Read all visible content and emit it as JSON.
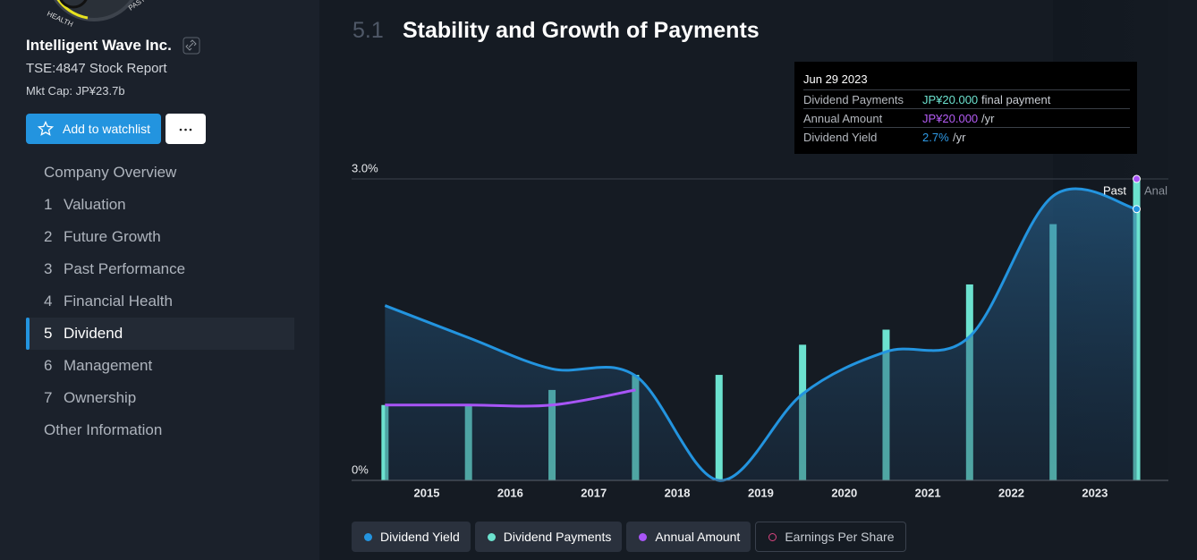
{
  "sidebar": {
    "logo": {
      "labels": [
        "HEALTH",
        "PAST"
      ]
    },
    "company": "Intelligent Wave Inc.",
    "report": "TSE:4847 Stock Report",
    "market_cap": "Mkt Cap: JP¥23.7b",
    "watchlist_button": "Add to watchlist",
    "nav": [
      {
        "label": "Company Overview"
      },
      {
        "number": 1,
        "label": "Valuation"
      },
      {
        "number": 2,
        "label": "Future Growth"
      },
      {
        "number": 3,
        "label": "Past Performance"
      },
      {
        "number": 4,
        "label": "Financial Health"
      },
      {
        "number": 5,
        "label": "Dividend",
        "active": true
      },
      {
        "number": 6,
        "label": "Management"
      },
      {
        "number": 7,
        "label": "Ownership"
      },
      {
        "label": "Other Information"
      }
    ]
  },
  "section": {
    "number": "5.1",
    "title": "Stability and Growth of Payments"
  },
  "tooltip": {
    "date": "Jun 29 2023",
    "rows": [
      {
        "label": "Dividend Payments",
        "value": "JP¥20.000",
        "note": "final payment",
        "color": "#6ce2cf"
      },
      {
        "label": "Annual Amount",
        "value": "JP¥20.000",
        "note": "/yr",
        "color": "#b45cf5"
      },
      {
        "label": "Dividend Yield",
        "value": "2.7%",
        "note": "/yr",
        "color": "#2f9ae6"
      }
    ]
  },
  "chart_data": {
    "type": "combo",
    "x": [
      2014.5,
      2015.5,
      2016.5,
      2017.5,
      2018.5,
      2019.5,
      2020.5,
      2021.5,
      2022.5,
      2023.5
    ],
    "xlim": [
      2014.1,
      2023.88
    ],
    "xticks": [
      2015,
      2016,
      2017,
      2018,
      2019,
      2020,
      2021,
      2022,
      2023
    ],
    "ylim": [
      0,
      3
    ],
    "yticks": [
      {
        "value": 0,
        "label": "0%"
      },
      {
        "value": 3,
        "label": "3.0%"
      }
    ],
    "y2lim": [
      0,
      20
    ],
    "series": [
      {
        "name": "Dividend Yield",
        "type": "line",
        "area": true,
        "color": "#2394df",
        "values": [
          1.74,
          1.42,
          1.11,
          1.04,
          0,
          0.86,
          1.28,
          1.43,
          2.83,
          2.7
        ]
      },
      {
        "name": "Dividend Payments",
        "type": "bar",
        "axis": "y2",
        "color": "#6ce2cf",
        "values": [
          5,
          5,
          6,
          7,
          7,
          9,
          10,
          13,
          17,
          20
        ]
      },
      {
        "name": "Annual Amount",
        "type": "line",
        "axis": "y2",
        "color": "#a855f7",
        "values": [
          5,
          5,
          5,
          6,
          null,
          null,
          null,
          null,
          null,
          20
        ]
      }
    ],
    "past_start": 2022.5,
    "past_label": "Past",
    "next_label": "Anal"
  },
  "inactive_legend": {
    "name": "Earnings Per Share",
    "color": "#d9447f"
  }
}
